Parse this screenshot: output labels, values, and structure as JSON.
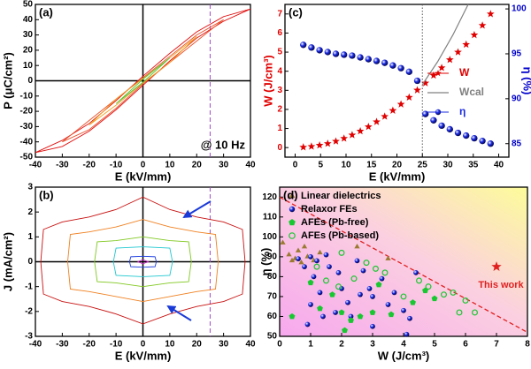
{
  "chart_data": [
    {
      "type": "line",
      "panel_label": "(a)",
      "xlabel": "E (kV/mm)",
      "ylabel": "P (μC/cm²)",
      "annotation": "@ 10 Hz",
      "xlim": [
        -40,
        40
      ],
      "xticks": [
        -40,
        -30,
        -20,
        -10,
        0,
        10,
        20,
        30,
        40
      ],
      "ylim": [
        -50,
        50
      ],
      "yticks": [
        -50,
        -40,
        -30,
        -20,
        -10,
        0,
        10,
        20,
        30,
        40,
        50
      ],
      "zero_lines": true,
      "vline": 25,
      "vline_color": "#a04cc8",
      "vline_style": "dashed",
      "series": [
        {
          "color": "#e01010",
          "x": [
            40,
            30,
            20,
            10,
            0,
            -10,
            -20,
            -30,
            -40,
            -30,
            -20,
            -10,
            0,
            10,
            20,
            30,
            40
          ],
          "values": [
            47,
            42,
            32,
            18,
            3,
            -13,
            -28,
            -39,
            -47,
            -43,
            -33,
            -19,
            -3,
            13,
            28,
            39,
            47
          ]
        },
        {
          "color": "#e8502a",
          "x": [
            30,
            20,
            10,
            0,
            -10,
            -20,
            -30,
            -20,
            -10,
            0,
            10,
            20,
            30
          ],
          "values": [
            40,
            30,
            16,
            2,
            -12,
            -26,
            -40,
            -32,
            -18,
            -2,
            12,
            26,
            40
          ]
        },
        {
          "color": "#f0a020",
          "x": [
            20,
            10,
            0,
            -10,
            -20,
            -10,
            0,
            10,
            20
          ],
          "values": [
            29,
            15,
            1.5,
            -12,
            -29,
            -16,
            -1.5,
            12,
            29
          ]
        },
        {
          "color": "#60c030",
          "x": [
            10,
            0,
            -10,
            0,
            10
          ],
          "values": [
            15,
            1,
            -15,
            -1,
            15
          ]
        }
      ]
    },
    {
      "type": "line",
      "panel_label": "(b)",
      "xlabel": "E (kV/mm)",
      "ylabel": "J (mA/cm²)",
      "xlim": [
        -40,
        40
      ],
      "xticks": [
        -40,
        -30,
        -20,
        -10,
        0,
        10,
        20,
        30,
        40
      ],
      "ylim": [
        -3,
        3
      ],
      "yticks": [
        -3,
        -2,
        -1,
        0,
        1,
        2,
        3
      ],
      "zero_lines": true,
      "vline": 25,
      "vline_color": "#a04cc8",
      "vline_style": "dashed",
      "series": [
        {
          "color": "#c81010",
          "x": [
            -38,
            -37,
            -30,
            -20,
            -10,
            0,
            10,
            20,
            30,
            37,
            38,
            37,
            30,
            20,
            10,
            0,
            -10,
            -20,
            -30,
            -37,
            -38
          ],
          "values": [
            0,
            1.3,
            1.6,
            1.8,
            2.1,
            2.6,
            2.1,
            1.8,
            1.6,
            1.3,
            0,
            -1.3,
            -1.6,
            -1.8,
            -2.1,
            -2.5,
            -2.1,
            -1.8,
            -1.6,
            -1.3,
            0
          ]
        },
        {
          "color": "#f08020",
          "x": [
            -28,
            -27,
            -20,
            -10,
            0,
            10,
            20,
            27,
            28,
            27,
            20,
            10,
            0,
            -10,
            -20,
            -27,
            -28
          ],
          "values": [
            0,
            1.1,
            1.2,
            1.4,
            1.7,
            1.4,
            1.2,
            1.1,
            0,
            -1.1,
            -1.2,
            -1.4,
            -1.6,
            -1.4,
            -1.2,
            -1.1,
            0
          ]
        },
        {
          "color": "#80c820",
          "x": [
            -18,
            -17,
            -10,
            0,
            10,
            17,
            18,
            17,
            10,
            0,
            -10,
            -17,
            -18
          ],
          "values": [
            0,
            0.8,
            0.85,
            1.0,
            0.85,
            0.8,
            0,
            -0.8,
            -0.85,
            -1.0,
            -0.85,
            -0.8,
            0
          ]
        },
        {
          "color": "#20c8d0",
          "x": [
            -11,
            -10,
            0,
            10,
            11,
            10,
            0,
            -10,
            -11
          ],
          "values": [
            0,
            0.55,
            0.6,
            0.55,
            0,
            -0.55,
            -0.6,
            -0.55,
            0
          ]
        },
        {
          "color": "#2040e0",
          "x": [
            -5,
            -4.5,
            0,
            4.5,
            5,
            4.5,
            0,
            -4.5,
            -5
          ],
          "values": [
            0,
            0.2,
            0.22,
            0.2,
            0,
            -0.2,
            -0.22,
            -0.2,
            0
          ]
        },
        {
          "color": "#c020c0",
          "x": [
            -2,
            0,
            2,
            0,
            -2
          ],
          "values": [
            0,
            0.08,
            0,
            -0.08,
            0
          ]
        }
      ]
    },
    {
      "type": "line",
      "panel_label": "(c)",
      "xlabel": "E (kV/mm)",
      "ylabel": "W (J/cm³)",
      "y2label": "η (%)",
      "ycolor": "#e00000",
      "y2color": "#0000cc",
      "xlim": [
        -2,
        42
      ],
      "xticks": [
        0,
        5,
        10,
        15,
        20,
        25,
        30,
        35,
        40
      ],
      "ylim": [
        -0.5,
        7.5
      ],
      "yticks": [
        0,
        1,
        2,
        3,
        4,
        5,
        6,
        7
      ],
      "y2lim": [
        83.5,
        100.5
      ],
      "y2ticks": [
        85,
        90,
        95,
        100
      ],
      "vline": 25,
      "vline_color": "#555555",
      "vline_style": "dotted",
      "legend": "center right",
      "x": [
        1.6,
        3.2,
        4.8,
        6.4,
        8.0,
        9.6,
        11.2,
        12.8,
        14.4,
        16.0,
        17.6,
        19.2,
        20.8,
        22.4,
        24.0,
        25.6,
        27.2,
        28.8,
        30.4,
        32.0,
        33.6,
        35.2,
        36.8,
        38.4
      ],
      "series": [
        {
          "name": "W",
          "color": "#e00000",
          "marker": "star",
          "values": [
            0.02,
            0.06,
            0.12,
            0.21,
            0.33,
            0.48,
            0.66,
            0.86,
            1.09,
            1.35,
            1.63,
            1.94,
            2.27,
            2.63,
            3.01,
            3.38,
            3.78,
            4.18,
            4.6,
            5.0,
            5.4,
            5.9,
            6.4,
            7.0
          ]
        },
        {
          "name": "Wcal",
          "color": "#808080",
          "line": true,
          "x": [
            25,
            28,
            31,
            34
          ],
          "values": [
            3.3,
            4.5,
            5.9,
            7.5
          ]
        },
        {
          "name": "η",
          "color": "#1a2ae0",
          "marker": "sphere",
          "axis": "y2",
          "values": [
            96.0,
            95.7,
            95.4,
            95.2,
            95.0,
            94.9,
            94.8,
            94.6,
            94.4,
            94.2,
            94.0,
            93.7,
            93.4,
            93.0,
            92.0,
            88.3,
            87.6,
            87.0,
            86.6,
            86.2,
            85.9,
            85.6,
            85.3,
            85.0
          ]
        }
      ]
    },
    {
      "type": "scatter",
      "panel_label": "(d)",
      "xlabel": "W (J/cm³)",
      "ylabel": "η (%)",
      "annotation": "This work",
      "background": "gradient",
      "legend": "upper left",
      "xlim": [
        0,
        8
      ],
      "xticks": [
        0,
        1,
        2,
        3,
        4,
        5,
        6,
        7,
        8
      ],
      "ylim": [
        50,
        125
      ],
      "yticks": [
        50,
        60,
        70,
        80,
        90,
        100,
        110,
        120
      ],
      "trend_line": {
        "color": "#e02020",
        "x": [
          0,
          8
        ],
        "values": [
          120,
          52
        ]
      },
      "series": [
        {
          "name": "Linear dielectrics",
          "color": "#9a7a30",
          "marker": "triangle",
          "x": [
            0.1,
            0.3,
            0.4,
            0.6,
            0.8,
            0.9,
            1.1,
            1.3,
            0.7,
            2.5,
            3.5,
            0.5
          ],
          "values": [
            97,
            91,
            88,
            93,
            95,
            90,
            88,
            92,
            87,
            95,
            89,
            89
          ]
        },
        {
          "name": "Relaxor FEs",
          "color": "#1a2ae0",
          "marker": "sphere",
          "x": [
            0.6,
            0.8,
            1.0,
            1.2,
            1.1,
            1.3,
            1.5,
            1.6,
            1.9,
            2.0,
            2.2,
            2.3,
            2.5,
            2.7,
            2.9,
            3.0,
            3.3,
            3.5,
            4.0,
            4.2,
            4.1,
            1.0,
            1.4,
            0.9,
            2.6,
            4.4,
            3.7,
            1.8,
            3.0
          ],
          "values": [
            89,
            85,
            90,
            88,
            80,
            72,
            91,
            85,
            82,
            74,
            67,
            60,
            88,
            83,
            74,
            70,
            79,
            66,
            63,
            59,
            51,
            66,
            60,
            56,
            71,
            82,
            72,
            62,
            55
          ]
        },
        {
          "name": "AFEs (Pb-free)",
          "color": "#18c830",
          "marker": "pentagon",
          "x": [
            1.0,
            1.3,
            1.7,
            2.0,
            2.3,
            2.6,
            3.0,
            3.2,
            3.6,
            4.3,
            4.7,
            5.0,
            2.1,
            0.4
          ],
          "values": [
            77,
            64,
            71,
            62,
            58,
            60,
            62,
            76,
            61,
            67,
            73,
            69,
            53,
            60
          ]
        },
        {
          "name": "AFEs (Pb-based)",
          "color": "#18c830",
          "marker": "open-circle",
          "x": [
            1.2,
            1.5,
            2.0,
            2.4,
            2.8,
            3.1,
            3.4,
            4.5,
            4.8,
            5.3,
            5.6,
            6.0,
            6.3,
            5.8,
            1.9,
            4.0
          ],
          "values": [
            85,
            78,
            92,
            79,
            87,
            84,
            82,
            78,
            75,
            71,
            72,
            68,
            62,
            62,
            75,
            70
          ]
        },
        {
          "color": "#e02020",
          "marker": "star",
          "size": 6,
          "x": [
            7.0
          ],
          "values": [
            85
          ]
        }
      ]
    }
  ]
}
